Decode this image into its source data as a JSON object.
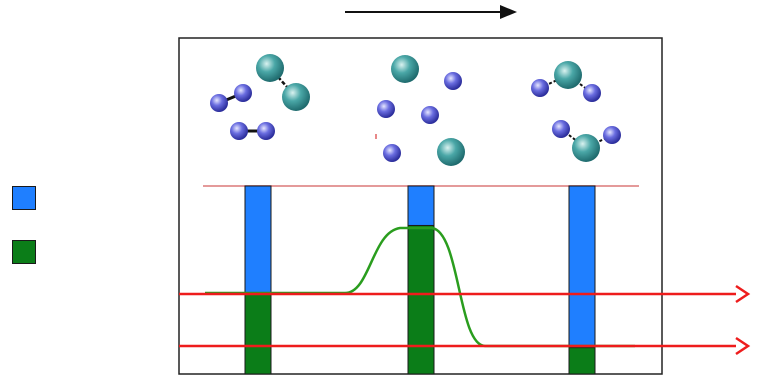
{
  "diagram": {
    "colors": {
      "background": "#ffffff",
      "frame": "#222222",
      "blue": "#1f7fff",
      "green": "#0b7d18",
      "curve": "#2a9d1e",
      "red_line": "#ee1c1c",
      "pink_line": "#e49a9a",
      "small_atom": "#3c3fbd",
      "large_atom": "#2e8f8f",
      "top_arrow": "#111111"
    },
    "legend": [
      {
        "name": "blue-swatch",
        "color": "#1f7fff"
      },
      {
        "name": "green-swatch",
        "color": "#0b7d18"
      }
    ],
    "stages": [
      {
        "name": "stage-left",
        "blue_fraction": 0.57,
        "green_fraction": 0.43
      },
      {
        "name": "stage-middle",
        "blue_fraction": 0.21,
        "green_fraction": 0.79
      },
      {
        "name": "stage-right",
        "blue_fraction": 0.86,
        "green_fraction": 0.14
      }
    ],
    "icons": {
      "top_arrow": "right-arrow-icon",
      "red_arrows": "right-arrow-icon",
      "small_atom": "small-atom-icon",
      "large_atom": "large-atom-icon"
    }
  }
}
